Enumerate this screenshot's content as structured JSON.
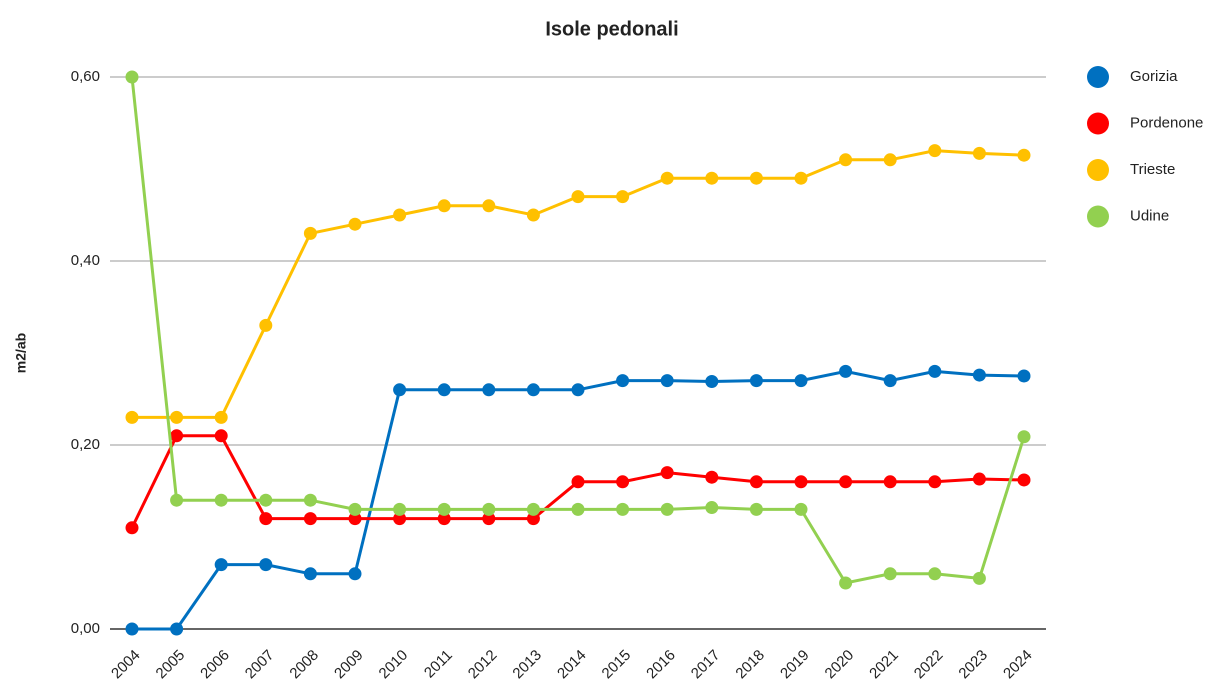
{
  "chart_data": {
    "type": "line",
    "title": "Isole pedonali",
    "y_label": "m2/ab",
    "categories": [
      "2004",
      "2005",
      "2006",
      "2007",
      "2008",
      "2009",
      "2010",
      "2011",
      "2012",
      "2013",
      "2014",
      "2015",
      "2016",
      "2017",
      "2018",
      "2019",
      "2020",
      "2021",
      "2022",
      "2023",
      "2024"
    ],
    "series": [
      {
        "name": "Gorizia",
        "color": "#0070c0",
        "values": [
          0,
          0,
          0.07,
          0.07,
          0.06,
          0.06,
          0.26,
          0.26,
          0.26,
          0.26,
          0.26,
          0.27,
          0.27,
          0.269,
          0.27,
          0.27,
          0.28,
          0.27,
          0.28,
          0.276,
          0.275
        ]
      },
      {
        "name": "Pordenone",
        "color": "#ff0000",
        "values": [
          0.11,
          0.21,
          0.21,
          0.12,
          0.12,
          0.12,
          0.12,
          0.12,
          0.12,
          0.12,
          0.16,
          0.16,
          0.17,
          0.165,
          0.16,
          0.16,
          0.16,
          0.16,
          0.16,
          0.163,
          0.162
        ]
      },
      {
        "name": "Trieste",
        "color": "#ffc000",
        "values": [
          0.23,
          0.23,
          0.23,
          0.33,
          0.43,
          0.44,
          0.45,
          0.46,
          0.46,
          0.45,
          0.47,
          0.47,
          0.49,
          0.49,
          0.49,
          0.49,
          0.51,
          0.51,
          0.52,
          0.517,
          0.515
        ]
      },
      {
        "name": "Udine",
        "color": "#92d050",
        "values": [
          0.6,
          0.14,
          0.14,
          0.14,
          0.14,
          0.13,
          0.13,
          0.13,
          0.13,
          0.13,
          0.13,
          0.13,
          0.13,
          0.132,
          0.13,
          0.13,
          0.05,
          0.06,
          0.06,
          0.055,
          0.209
        ]
      }
    ],
    "ylim": [
      0,
      0.6
    ],
    "yticks": [
      {
        "value": 0,
        "label": "0,00"
      },
      {
        "value": 0.2,
        "label": "0,20"
      },
      {
        "value": 0.4,
        "label": "0,40"
      },
      {
        "value": 0.6,
        "label": "0,60"
      }
    ],
    "grid": true,
    "legend": "right"
  }
}
